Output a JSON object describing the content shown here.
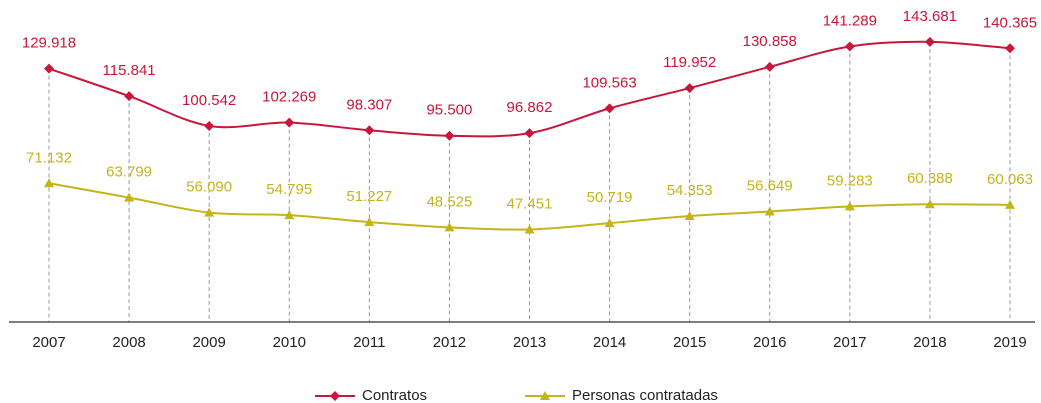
{
  "chart_data": {
    "type": "line",
    "categories": [
      "2007",
      "2008",
      "2009",
      "2010",
      "2011",
      "2012",
      "2013",
      "2014",
      "2015",
      "2016",
      "2017",
      "2018",
      "2019"
    ],
    "series": [
      {
        "name": "Contratos",
        "color": "#c8173a",
        "marker": "diamond",
        "values": [
          129918,
          115841,
          100542,
          102269,
          98307,
          95500,
          96862,
          109563,
          119952,
          130858,
          141289,
          143681,
          140365
        ],
        "value_labels": [
          "129.918",
          "115.841",
          "100.542",
          "102.269",
          "98.307",
          "95.500",
          "96.862",
          "109.563",
          "119.952",
          "130.858",
          "141.289",
          "143.681",
          "140.365"
        ]
      },
      {
        "name": "Personas contratadas",
        "color": "#c4b41c",
        "marker": "triangle",
        "values": [
          71132,
          63799,
          56090,
          54795,
          51227,
          48525,
          47451,
          50719,
          54353,
          56649,
          59283,
          60388,
          60063
        ],
        "value_labels": [
          "71.132",
          "63.799",
          "56.090",
          "54.795",
          "51.227",
          "48.525",
          "47.451",
          "50.719",
          "54.353",
          "56.649",
          "59.283",
          "60.388",
          "60.063"
        ]
      }
    ],
    "ylim": [
      0,
      160000
    ],
    "legend": "bottom"
  }
}
